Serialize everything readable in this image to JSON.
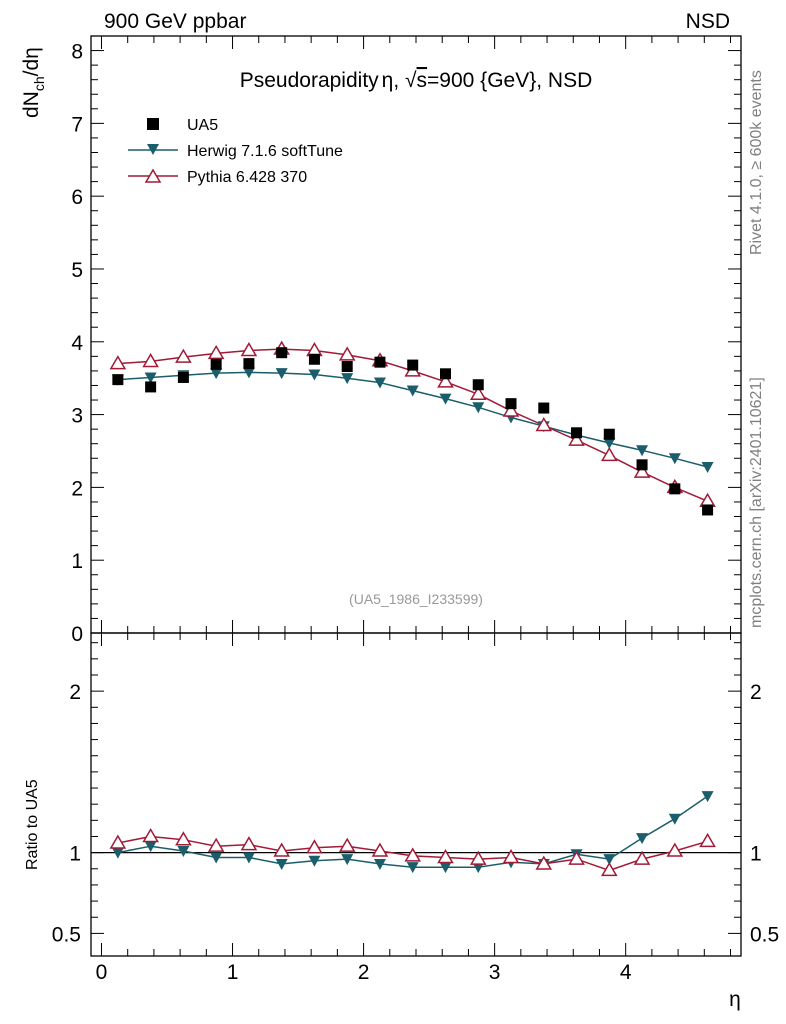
{
  "header": {
    "left": "900 GeV ppbar",
    "right": "NSD"
  },
  "side_text": {
    "rivet": "Rivet 4.1.0, ≥ 600k events",
    "mcplots": "mcplots.cern.ch [arXiv:2401.10621]"
  },
  "colors": {
    "data": "#000000",
    "herwig": "#1b5e6b",
    "pythia": "#a11a36",
    "axis": "#000000",
    "watermark": "#999999"
  },
  "chart_data": [
    {
      "type": "scatter",
      "title": "Pseudorapidity η, √s=900 {GeV}, NSD",
      "title_parts": {
        "prefix": "Pseudorapidity",
        "eta": "η",
        "sep": ", ",
        "sqrt": "√",
        "s": "s",
        "suffix": "=900 {GeV}, NSD"
      },
      "ylabel": "dN_ch/dη",
      "ylabel_parts": {
        "main": "dN",
        "sub": "ch",
        "tail": "/dη"
      },
      "watermark": "(UA5_1986_I233599)",
      "xlim": [
        -0.08,
        4.88
      ],
      "ylim": [
        0,
        8.2
      ],
      "yticks": [
        0,
        1,
        2,
        3,
        4,
        5,
        6,
        7,
        8
      ],
      "ytick_labels": [
        "0",
        "1",
        "2",
        "3",
        "4",
        "5",
        "6",
        "7",
        "8"
      ],
      "x": [
        0.125,
        0.375,
        0.625,
        0.875,
        1.125,
        1.375,
        1.625,
        1.875,
        2.125,
        2.375,
        2.625,
        2.875,
        3.125,
        3.375,
        3.625,
        3.875,
        4.125,
        4.375,
        4.625
      ],
      "series": [
        {
          "name": "UA5",
          "marker": "square",
          "values": [
            3.48,
            3.38,
            3.51,
            3.69,
            3.7,
            3.85,
            3.76,
            3.66,
            3.72,
            3.68,
            3.56,
            3.41,
            3.15,
            3.09,
            2.75,
            2.73,
            2.31,
            1.98,
            1.69
          ]
        },
        {
          "name": "Herwig 7.1.6 softTune",
          "marker": "triangle-down",
          "values": [
            3.48,
            3.51,
            3.54,
            3.57,
            3.58,
            3.57,
            3.55,
            3.5,
            3.44,
            3.33,
            3.22,
            3.1,
            2.96,
            2.84,
            2.72,
            2.61,
            2.51,
            2.4,
            2.28
          ]
        },
        {
          "name": "Pythia 6.428 370",
          "marker": "triangle-up-open",
          "values": [
            3.7,
            3.73,
            3.79,
            3.84,
            3.88,
            3.9,
            3.88,
            3.82,
            3.74,
            3.6,
            3.45,
            3.28,
            3.05,
            2.85,
            2.65,
            2.44,
            2.21,
            2.0,
            1.81
          ]
        }
      ]
    },
    {
      "type": "scatter",
      "ylabel": "Ratio to UA5",
      "xlabel": "η",
      "xlim": [
        -0.08,
        4.88
      ],
      "ylim": [
        0.36,
        2.36
      ],
      "yticks": [
        0.5,
        1,
        2
      ],
      "ytick_labels": [
        "0.5",
        "1",
        "2"
      ],
      "xticks": [
        0,
        1,
        2,
        3,
        4
      ],
      "xtick_labels": [
        "0",
        "1",
        "2",
        "3",
        "4"
      ],
      "reference": 1,
      "x": [
        0.125,
        0.375,
        0.625,
        0.875,
        1.125,
        1.375,
        1.625,
        1.875,
        2.125,
        2.375,
        2.625,
        2.875,
        3.125,
        3.375,
        3.625,
        3.875,
        4.125,
        4.375,
        4.625
      ],
      "series": [
        {
          "name": "Herwig 7.1.6 softTune",
          "marker": "triangle-down",
          "values": [
            1.0,
            1.04,
            1.01,
            0.97,
            0.97,
            0.93,
            0.95,
            0.96,
            0.93,
            0.91,
            0.91,
            0.91,
            0.94,
            0.93,
            0.99,
            0.96,
            1.09,
            1.21,
            1.35
          ]
        },
        {
          "name": "Pythia 6.428 370",
          "marker": "triangle-up-open",
          "values": [
            1.06,
            1.1,
            1.08,
            1.04,
            1.05,
            1.01,
            1.03,
            1.04,
            1.01,
            0.98,
            0.97,
            0.96,
            0.97,
            0.93,
            0.96,
            0.89,
            0.96,
            1.01,
            1.07
          ]
        }
      ]
    }
  ]
}
